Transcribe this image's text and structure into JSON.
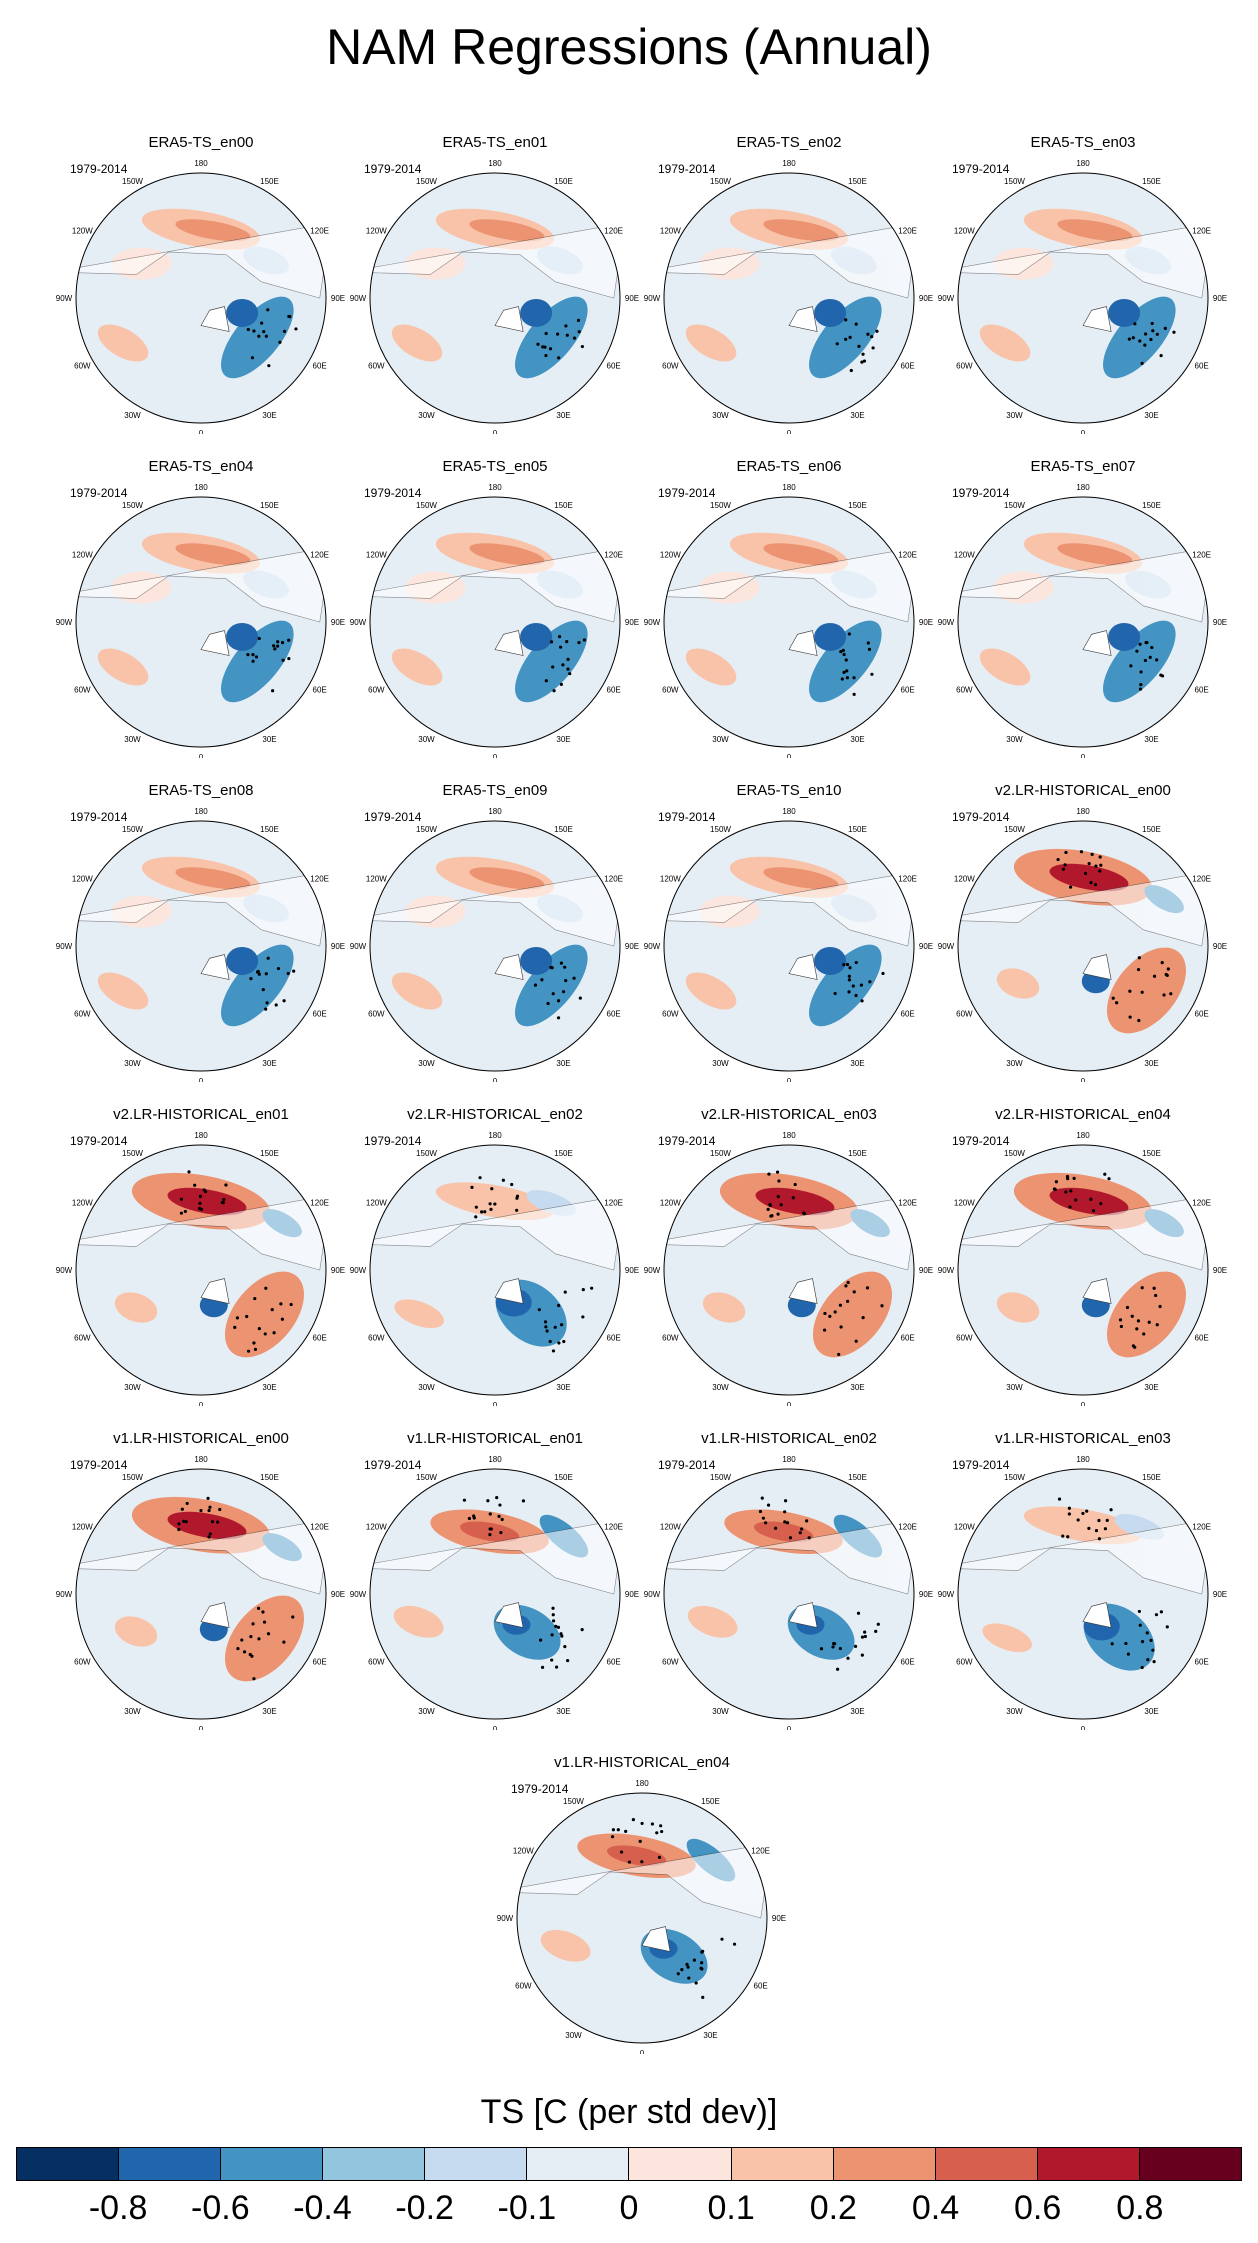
{
  "title": "NAM Regressions (Annual)",
  "period_label": "1979-2014",
  "lon_labels": [
    "180",
    "150E",
    "120E",
    "90E",
    "60E",
    "30E",
    "0",
    "30W",
    "60W",
    "90W",
    "120W",
    "150W"
  ],
  "panels": [
    {
      "title": "ERA5-TS_en00",
      "pattern": "era5",
      "seed": 1
    },
    {
      "title": "ERA5-TS_en01",
      "pattern": "era5",
      "seed": 2
    },
    {
      "title": "ERA5-TS_en02",
      "pattern": "era5",
      "seed": 3
    },
    {
      "title": "ERA5-TS_en03",
      "pattern": "era5",
      "seed": 4
    },
    {
      "title": "ERA5-TS_en04",
      "pattern": "era5",
      "seed": 5
    },
    {
      "title": "ERA5-TS_en05",
      "pattern": "era5",
      "seed": 6
    },
    {
      "title": "ERA5-TS_en06",
      "pattern": "era5",
      "seed": 7
    },
    {
      "title": "ERA5-TS_en07",
      "pattern": "era5",
      "seed": 8
    },
    {
      "title": "ERA5-TS_en08",
      "pattern": "era5",
      "seed": 9
    },
    {
      "title": "ERA5-TS_en09",
      "pattern": "era5",
      "seed": 10
    },
    {
      "title": "ERA5-TS_en10",
      "pattern": "era5",
      "seed": 11
    },
    {
      "title": "v2.LR-HISTORICAL_en00",
      "pattern": "model_strong",
      "seed": 12
    },
    {
      "title": "v2.LR-HISTORICAL_en01",
      "pattern": "model_strong",
      "seed": 13
    },
    {
      "title": "v2.LR-HISTORICAL_en02",
      "pattern": "model_weak",
      "seed": 14
    },
    {
      "title": "v2.LR-HISTORICAL_en03",
      "pattern": "model_strong",
      "seed": 15
    },
    {
      "title": "v2.LR-HISTORICAL_en04",
      "pattern": "model_strong",
      "seed": 16
    },
    {
      "title": "v1.LR-HISTORICAL_en00",
      "pattern": "model_strong",
      "seed": 17
    },
    {
      "title": "v1.LR-HISTORICAL_en01",
      "pattern": "model_mixed",
      "seed": 18
    },
    {
      "title": "v1.LR-HISTORICAL_en02",
      "pattern": "model_mixed",
      "seed": 19
    },
    {
      "title": "v1.LR-HISTORICAL_en03",
      "pattern": "model_weak",
      "seed": 20
    },
    {
      "title": "v1.LR-HISTORICAL_en04",
      "pattern": "model_mixed",
      "seed": 21
    }
  ],
  "colorbar": {
    "title": "TS [C (per std dev)]",
    "colors": [
      "#053061",
      "#2166ac",
      "#4393c3",
      "#92c5de",
      "#c6dbef",
      "#e6eef5",
      "#fbe5dc",
      "#f8c3a9",
      "#ec9371",
      "#d6604d",
      "#b2182b",
      "#67001f"
    ],
    "tick_labels": [
      "-0.8",
      "-0.6",
      "-0.4",
      "-0.2",
      "-0.1",
      "0",
      "0.1",
      "0.2",
      "0.4",
      "0.6",
      "0.8"
    ]
  },
  "chart_data": {
    "type": "heatmap",
    "title": "NAM Regressions (Annual)",
    "subplot_titles": [
      "ERA5-TS_en00",
      "ERA5-TS_en01",
      "ERA5-TS_en02",
      "ERA5-TS_en03",
      "ERA5-TS_en04",
      "ERA5-TS_en05",
      "ERA5-TS_en06",
      "ERA5-TS_en07",
      "ERA5-TS_en08",
      "ERA5-TS_en09",
      "ERA5-TS_en10",
      "v2.LR-HISTORICAL_en00",
      "v2.LR-HISTORICAL_en01",
      "v2.LR-HISTORICAL_en02",
      "v2.LR-HISTORICAL_en03",
      "v2.LR-HISTORICAL_en04",
      "v1.LR-HISTORICAL_en00",
      "v1.LR-HISTORICAL_en01",
      "v1.LR-HISTORICAL_en02",
      "v1.LR-HISTORICAL_en03",
      "v1.LR-HISTORICAL_en04"
    ],
    "period": "1979-2014",
    "projection": "north polar stereographic",
    "colorbar_label": "TS [C (per std dev)]",
    "levels": [
      -0.8,
      -0.6,
      -0.4,
      -0.2,
      -0.1,
      0,
      0.1,
      0.2,
      0.4,
      0.6,
      0.8
    ],
    "stippling": "significant regions marked with dots"
  }
}
